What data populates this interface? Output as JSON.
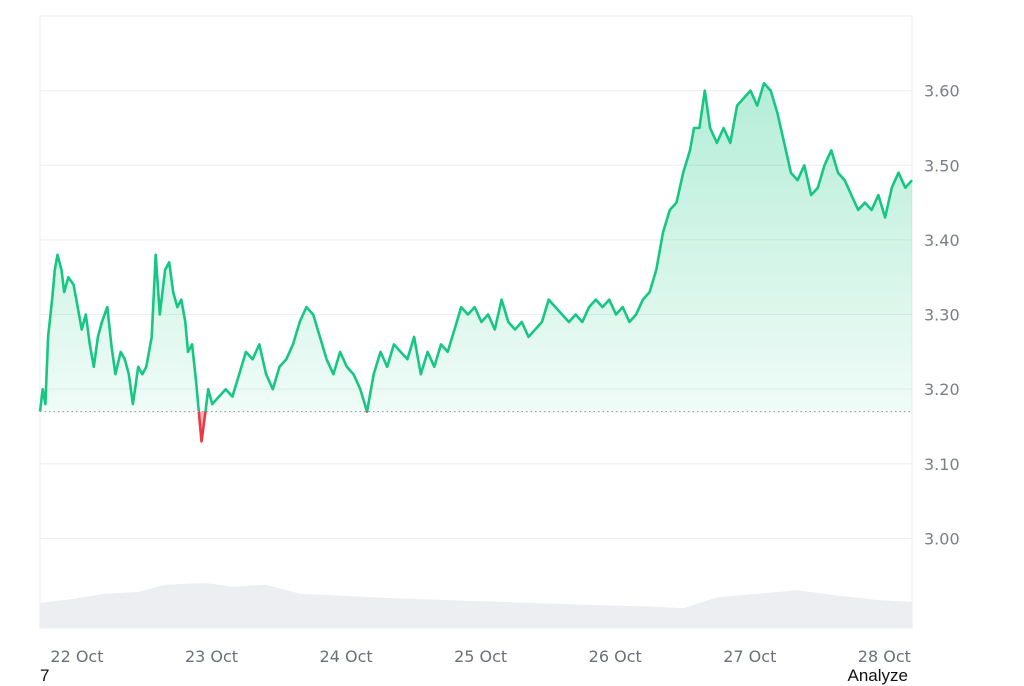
{
  "chart_data": {
    "type": "area",
    "baseline": 3.17,
    "ylim": [
      2.88,
      3.7
    ],
    "yticks": [
      "3.00",
      "3.10",
      "3.20",
      "3.30",
      "3.40",
      "3.50",
      "3.60"
    ],
    "xticks": [
      "22 Oct",
      "23 Oct",
      "24 Oct",
      "25 Oct",
      "26 Oct",
      "27 Oct",
      "28 Oct"
    ],
    "colors": {
      "above": "#16c784",
      "below": "#ea3943",
      "volume": "#eceef1",
      "baseline": "#9aa0a6",
      "grid": "#eceef1"
    },
    "price": [
      [
        21.77,
        3.17
      ],
      [
        21.79,
        3.2
      ],
      [
        21.81,
        3.18
      ],
      [
        21.83,
        3.27
      ],
      [
        21.86,
        3.32
      ],
      [
        21.88,
        3.36
      ],
      [
        21.9,
        3.38
      ],
      [
        21.93,
        3.36
      ],
      [
        21.95,
        3.33
      ],
      [
        21.98,
        3.35
      ],
      [
        22.02,
        3.34
      ],
      [
        22.05,
        3.31
      ],
      [
        22.08,
        3.28
      ],
      [
        22.11,
        3.3
      ],
      [
        22.14,
        3.26
      ],
      [
        22.17,
        3.23
      ],
      [
        22.2,
        3.27
      ],
      [
        22.23,
        3.29
      ],
      [
        22.27,
        3.31
      ],
      [
        22.3,
        3.26
      ],
      [
        22.33,
        3.22
      ],
      [
        22.37,
        3.25
      ],
      [
        22.4,
        3.24
      ],
      [
        22.43,
        3.22
      ],
      [
        22.46,
        3.18
      ],
      [
        22.5,
        3.23
      ],
      [
        22.53,
        3.22
      ],
      [
        22.56,
        3.23
      ],
      [
        22.6,
        3.27
      ],
      [
        22.63,
        3.38
      ],
      [
        22.66,
        3.3
      ],
      [
        22.7,
        3.36
      ],
      [
        22.73,
        3.37
      ],
      [
        22.76,
        3.33
      ],
      [
        22.79,
        3.31
      ],
      [
        22.82,
        3.32
      ],
      [
        22.85,
        3.29
      ],
      [
        22.87,
        3.25
      ],
      [
        22.9,
        3.26
      ],
      [
        22.93,
        3.21
      ],
      [
        22.95,
        3.17
      ],
      [
        22.97,
        3.13
      ],
      [
        23.0,
        3.17
      ],
      [
        23.02,
        3.2
      ],
      [
        23.05,
        3.18
      ],
      [
        23.1,
        3.19
      ],
      [
        23.15,
        3.2
      ],
      [
        23.2,
        3.19
      ],
      [
        23.25,
        3.22
      ],
      [
        23.3,
        3.25
      ],
      [
        23.35,
        3.24
      ],
      [
        23.4,
        3.26
      ],
      [
        23.45,
        3.22
      ],
      [
        23.5,
        3.2
      ],
      [
        23.55,
        3.23
      ],
      [
        23.6,
        3.24
      ],
      [
        23.65,
        3.26
      ],
      [
        23.7,
        3.29
      ],
      [
        23.75,
        3.31
      ],
      [
        23.8,
        3.3
      ],
      [
        23.85,
        3.27
      ],
      [
        23.9,
        3.24
      ],
      [
        23.95,
        3.22
      ],
      [
        24.0,
        3.25
      ],
      [
        24.05,
        3.23
      ],
      [
        24.1,
        3.22
      ],
      [
        24.15,
        3.2
      ],
      [
        24.2,
        3.17
      ],
      [
        24.25,
        3.22
      ],
      [
        24.3,
        3.25
      ],
      [
        24.35,
        3.23
      ],
      [
        24.4,
        3.26
      ],
      [
        24.45,
        3.25
      ],
      [
        24.5,
        3.24
      ],
      [
        24.55,
        3.27
      ],
      [
        24.6,
        3.22
      ],
      [
        24.65,
        3.25
      ],
      [
        24.7,
        3.23
      ],
      [
        24.75,
        3.26
      ],
      [
        24.8,
        3.25
      ],
      [
        24.85,
        3.28
      ],
      [
        24.9,
        3.31
      ],
      [
        24.95,
        3.3
      ],
      [
        25.0,
        3.31
      ],
      [
        25.05,
        3.29
      ],
      [
        25.1,
        3.3
      ],
      [
        25.15,
        3.28
      ],
      [
        25.2,
        3.32
      ],
      [
        25.25,
        3.29
      ],
      [
        25.3,
        3.28
      ],
      [
        25.35,
        3.29
      ],
      [
        25.4,
        3.27
      ],
      [
        25.45,
        3.28
      ],
      [
        25.5,
        3.29
      ],
      [
        25.55,
        3.32
      ],
      [
        25.6,
        3.31
      ],
      [
        25.65,
        3.3
      ],
      [
        25.7,
        3.29
      ],
      [
        25.75,
        3.3
      ],
      [
        25.8,
        3.29
      ],
      [
        25.85,
        3.31
      ],
      [
        25.9,
        3.32
      ],
      [
        25.95,
        3.31
      ],
      [
        26.0,
        3.32
      ],
      [
        26.05,
        3.3
      ],
      [
        26.1,
        3.31
      ],
      [
        26.15,
        3.29
      ],
      [
        26.2,
        3.3
      ],
      [
        26.25,
        3.32
      ],
      [
        26.3,
        3.33
      ],
      [
        26.35,
        3.36
      ],
      [
        26.4,
        3.41
      ],
      [
        26.45,
        3.44
      ],
      [
        26.5,
        3.45
      ],
      [
        26.55,
        3.49
      ],
      [
        26.6,
        3.52
      ],
      [
        26.63,
        3.55
      ],
      [
        26.67,
        3.55
      ],
      [
        26.71,
        3.6
      ],
      [
        26.75,
        3.55
      ],
      [
        26.8,
        3.53
      ],
      [
        26.85,
        3.55
      ],
      [
        26.9,
        3.53
      ],
      [
        26.95,
        3.58
      ],
      [
        27.0,
        3.59
      ],
      [
        27.05,
        3.6
      ],
      [
        27.1,
        3.58
      ],
      [
        27.15,
        3.61
      ],
      [
        27.2,
        3.6
      ],
      [
        27.25,
        3.57
      ],
      [
        27.3,
        3.53
      ],
      [
        27.35,
        3.49
      ],
      [
        27.4,
        3.48
      ],
      [
        27.45,
        3.5
      ],
      [
        27.5,
        3.46
      ],
      [
        27.55,
        3.47
      ],
      [
        27.6,
        3.5
      ],
      [
        27.65,
        3.52
      ],
      [
        27.7,
        3.49
      ],
      [
        27.75,
        3.48
      ],
      [
        27.8,
        3.46
      ],
      [
        27.85,
        3.44
      ],
      [
        27.9,
        3.45
      ],
      [
        27.95,
        3.44
      ],
      [
        28.0,
        3.46
      ],
      [
        28.05,
        3.43
      ],
      [
        28.1,
        3.47
      ],
      [
        28.15,
        3.49
      ],
      [
        28.2,
        3.47
      ],
      [
        28.25,
        3.48
      ]
    ],
    "volume": [
      [
        21.77,
        0.28
      ],
      [
        22.0,
        0.32
      ],
      [
        22.25,
        0.38
      ],
      [
        22.5,
        0.4
      ],
      [
        22.7,
        0.48
      ],
      [
        23.0,
        0.5
      ],
      [
        23.2,
        0.46
      ],
      [
        23.45,
        0.48
      ],
      [
        23.7,
        0.38
      ],
      [
        24.0,
        0.36
      ],
      [
        24.4,
        0.33
      ],
      [
        24.8,
        0.31
      ],
      [
        25.2,
        0.29
      ],
      [
        25.6,
        0.27
      ],
      [
        26.0,
        0.25
      ],
      [
        26.3,
        0.24
      ],
      [
        26.55,
        0.22
      ],
      [
        26.8,
        0.34
      ],
      [
        27.1,
        0.38
      ],
      [
        27.4,
        0.42
      ],
      [
        27.7,
        0.36
      ],
      [
        28.0,
        0.31
      ],
      [
        28.25,
        0.29
      ]
    ]
  }
}
